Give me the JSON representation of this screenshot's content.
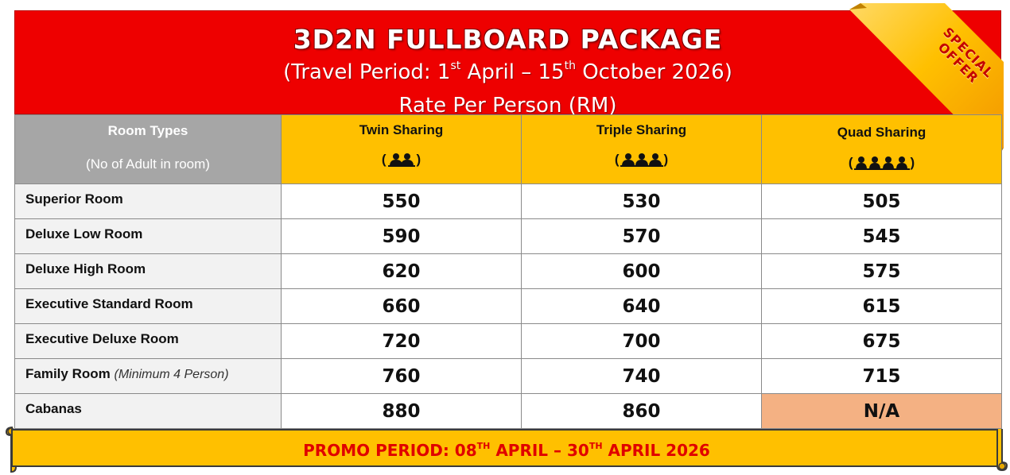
{
  "header": {
    "title": "3D2N FULLBOARD PACKAGE",
    "travel_prefix": "(Travel Period: 1",
    "travel_sup1": "st",
    "travel_mid": " April – 15",
    "travel_sup2": "th",
    "travel_suffix": " October 2026)",
    "rate_line": "Rate Per Person (RM)",
    "colors": {
      "header_bg": "#ee0000",
      "accent": "#ffc000"
    }
  },
  "ribbon": {
    "line1": "SPECIAL",
    "line2": "OFFER"
  },
  "table": {
    "room_header": {
      "label": "Room Types",
      "sub": "(No of Adult in room)"
    },
    "columns": [
      {
        "label": "Twin Sharing",
        "icon": "two-people-icon",
        "open": "(",
        "close": ")"
      },
      {
        "label": "Triple Sharing",
        "icon": "three-people-icon",
        "open": "(",
        "close": ")"
      },
      {
        "label": "Quad Sharing",
        "icon": "four-people-icon",
        "open": "(",
        "close": ")"
      }
    ],
    "rows": [
      {
        "room": "Superior Room",
        "note": "",
        "twin": "550",
        "triple": "530",
        "quad": "505"
      },
      {
        "room": "Deluxe Low Room",
        "note": "",
        "twin": "590",
        "triple": "570",
        "quad": "545"
      },
      {
        "room": "Deluxe High Room",
        "note": "",
        "twin": "620",
        "triple": "600",
        "quad": "575"
      },
      {
        "room": "Executive Standard Room",
        "note": "",
        "twin": "660",
        "triple": "640",
        "quad": "615"
      },
      {
        "room": "Executive Deluxe Room",
        "note": "",
        "twin": "720",
        "triple": "700",
        "quad": "675"
      },
      {
        "room": "Family Room",
        "note": "(Minimum 4 Person)",
        "twin": "760",
        "triple": "740",
        "quad": "715"
      },
      {
        "room": "Cabanas",
        "note": "",
        "twin": "880",
        "triple": "860",
        "quad": "N/A"
      }
    ],
    "na_color": "#f4b183"
  },
  "promo": {
    "prefix": "PROMO PERIOD: 08",
    "sup1": "TH",
    "mid": " APRIL – 30",
    "sup2": "TH",
    "suffix": " APRIL 2026"
  }
}
